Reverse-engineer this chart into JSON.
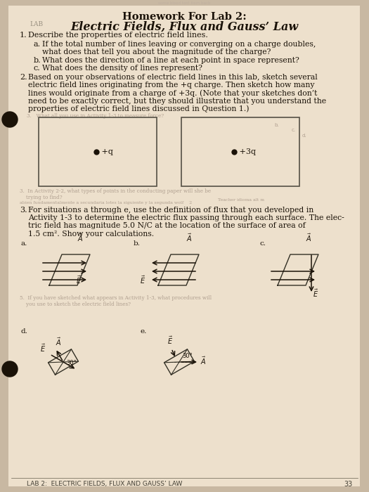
{
  "bg_color": "#c8b8a2",
  "page_color": "#ede0cc",
  "title_line1": "Homework For Lab 2:",
  "title_line2": "Electric Fields, Flux and Gauss’ Law",
  "footer_text": "LAB 2:  ELECTRIC FIELDS, FLUX AND GAUSS’ LAW",
  "page_number": "33",
  "hole_color": "#1a1208",
  "text_color": "#1a1208",
  "dim_text_color": "#b0a090"
}
